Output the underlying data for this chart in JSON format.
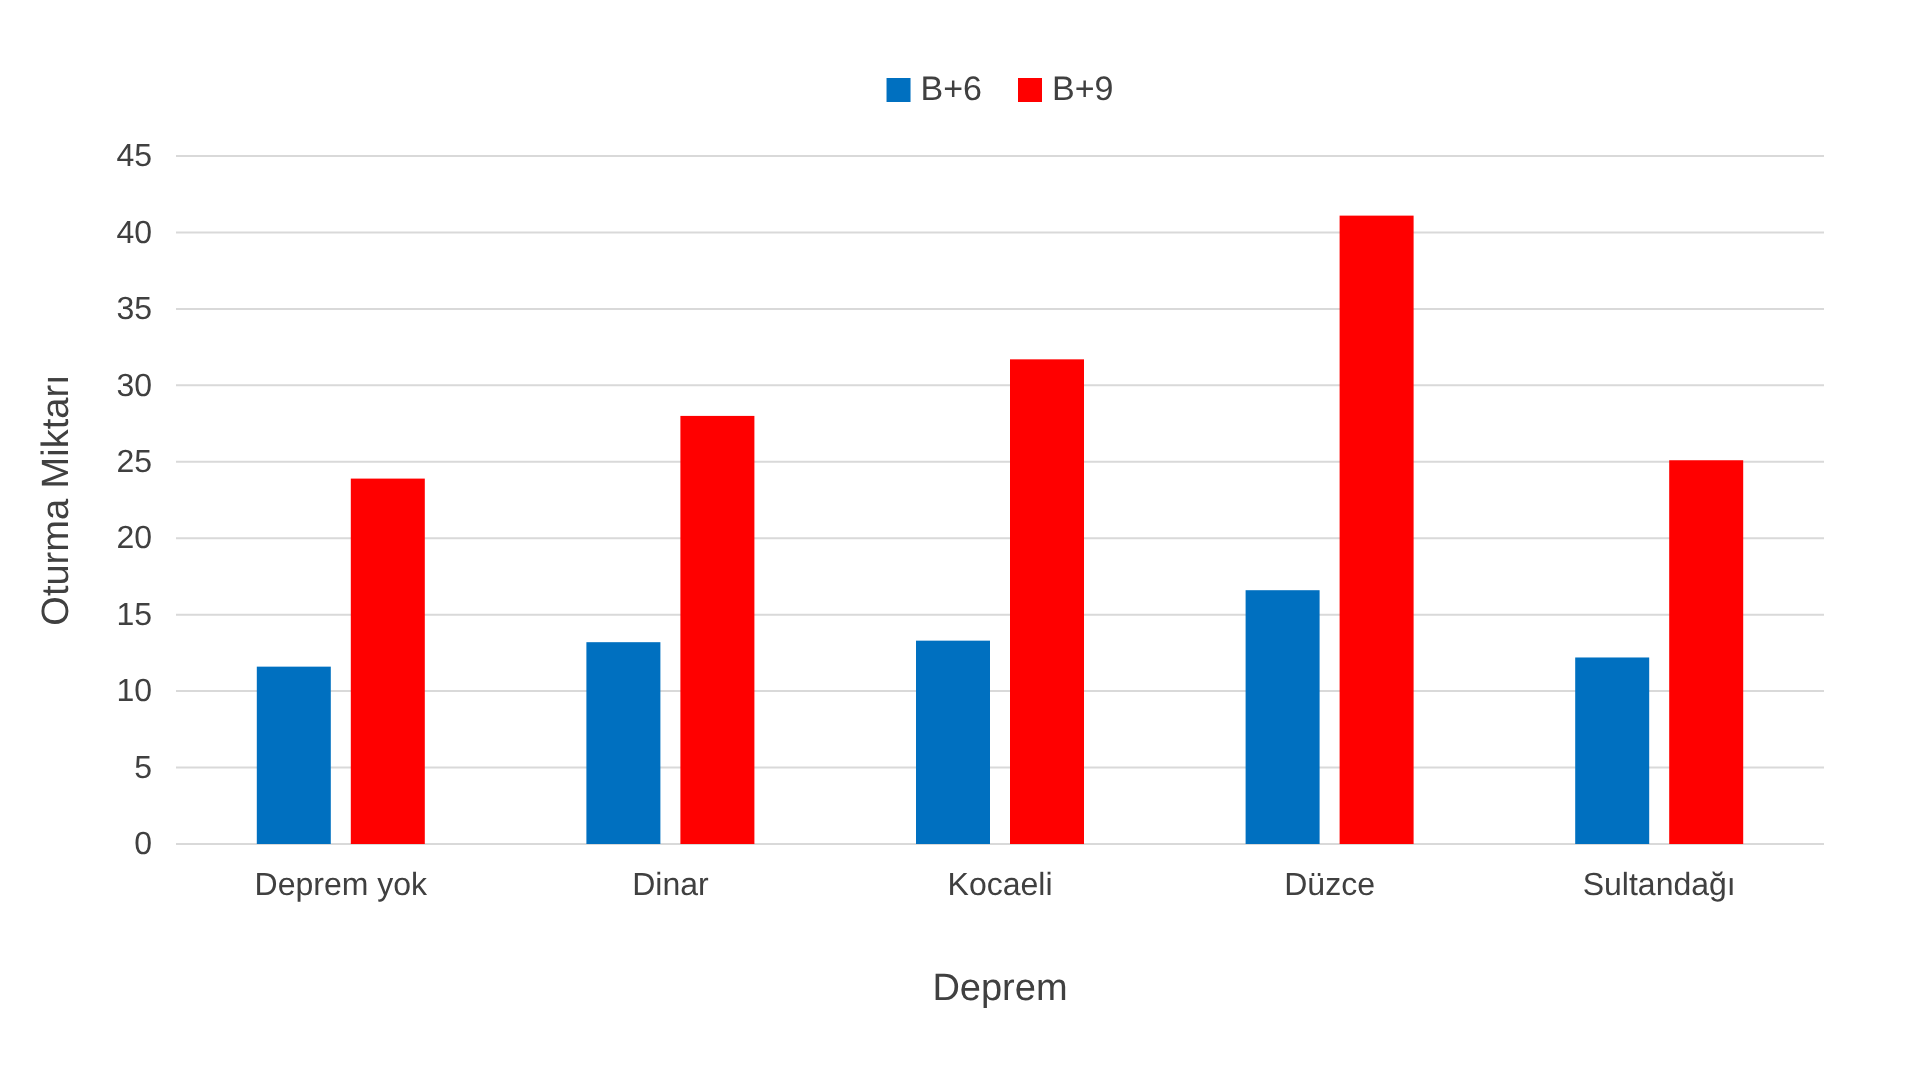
{
  "chart_data": {
    "type": "bar",
    "xlabel": "Deprem",
    "ylabel": "Oturma Miktarı",
    "categories": [
      "Deprem yok",
      "Dinar",
      "Kocaeli",
      "Düzce",
      "Sultandağı"
    ],
    "series": [
      {
        "name": "B+6",
        "color": "#0070c0",
        "values": [
          11.6,
          13.2,
          13.3,
          16.6,
          12.2
        ]
      },
      {
        "name": "B+9",
        "color": "#ff0000",
        "values": [
          23.9,
          28.0,
          31.7,
          41.1,
          25.1
        ]
      }
    ],
    "ylim": [
      0,
      45
    ],
    "yticks": [
      0,
      5,
      10,
      15,
      20,
      25,
      30,
      35,
      40,
      45
    ],
    "grid": "y",
    "legend": "top"
  }
}
